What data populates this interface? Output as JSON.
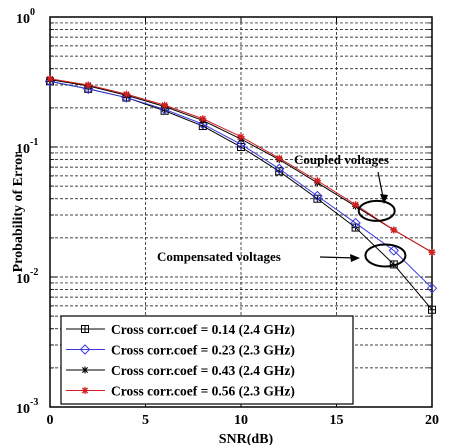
{
  "chart_data": {
    "type": "line",
    "xlabel": "SNR(dB)",
    "ylabel": "Probability of Error",
    "x_scale": "linear",
    "y_scale": "log",
    "xlim": [
      0,
      20
    ],
    "ylim": [
      0.001,
      1
    ],
    "grid": true,
    "grid_style": "dashed",
    "legend_position": "bottom-left",
    "x_ticks": [
      0,
      5,
      10,
      15,
      20
    ],
    "x_tick_labels": [
      "0",
      "5",
      "10",
      "15",
      "20"
    ],
    "y_ticks": [
      0.001,
      0.01,
      0.1,
      1
    ],
    "y_tick_labels": [
      {
        "base": "10",
        "exp": "-3"
      },
      {
        "base": "10",
        "exp": "-2"
      },
      {
        "base": "10",
        "exp": "-1"
      },
      {
        "base": "10",
        "exp": "0"
      }
    ],
    "series": [
      {
        "name": "Cross corr.coef = 0.14 (2.4 GHz)",
        "color": "#000000",
        "marker": "square",
        "x": [
          0,
          2,
          4,
          6,
          8,
          10,
          12,
          14,
          16,
          18,
          20
        ],
        "y": [
          0.32,
          0.28,
          0.24,
          0.19,
          0.145,
          0.1,
          0.065,
          0.04,
          0.024,
          0.0125,
          0.0056
        ]
      },
      {
        "name": "Cross corr.coef = 0.23 (2.3 GHz)",
        "color": "#3a3adf",
        "marker": "diamond",
        "x": [
          0,
          2,
          4,
          6,
          8,
          10,
          12,
          14,
          16,
          18,
          20
        ],
        "y": [
          0.32,
          0.28,
          0.24,
          0.195,
          0.15,
          0.105,
          0.068,
          0.042,
          0.026,
          0.016,
          0.0082
        ]
      },
      {
        "name": "Cross corr.coef = 0.43 (2.4 GHz)",
        "color": "#000000",
        "marker": "star",
        "x": [
          0,
          2,
          4,
          6,
          8,
          10,
          12,
          14,
          16,
          18,
          20
        ],
        "y": [
          0.33,
          0.295,
          0.25,
          0.205,
          0.16,
          0.115,
          0.08,
          0.053,
          0.035,
          0.023,
          0.0155
        ]
      },
      {
        "name": "Cross corr.coef = 0.56 (2.3 GHz)",
        "color": "#d42020",
        "marker": "asterisk",
        "x": [
          0,
          2,
          4,
          6,
          8,
          10,
          12,
          14,
          16,
          18,
          20
        ],
        "y": [
          0.335,
          0.3,
          0.255,
          0.21,
          0.165,
          0.12,
          0.082,
          0.055,
          0.036,
          0.023,
          0.0155
        ]
      }
    ],
    "annotations": [
      {
        "text": "Coupled voltages",
        "ellipse_center": [
          17,
          0.028
        ],
        "arrow_tip": [
          18,
          0.03
        ]
      },
      {
        "text": "Compensated voltages",
        "ellipse_center": [
          17.3,
          0.016
        ],
        "arrow_tip": [
          16.6,
          0.016
        ]
      }
    ]
  }
}
